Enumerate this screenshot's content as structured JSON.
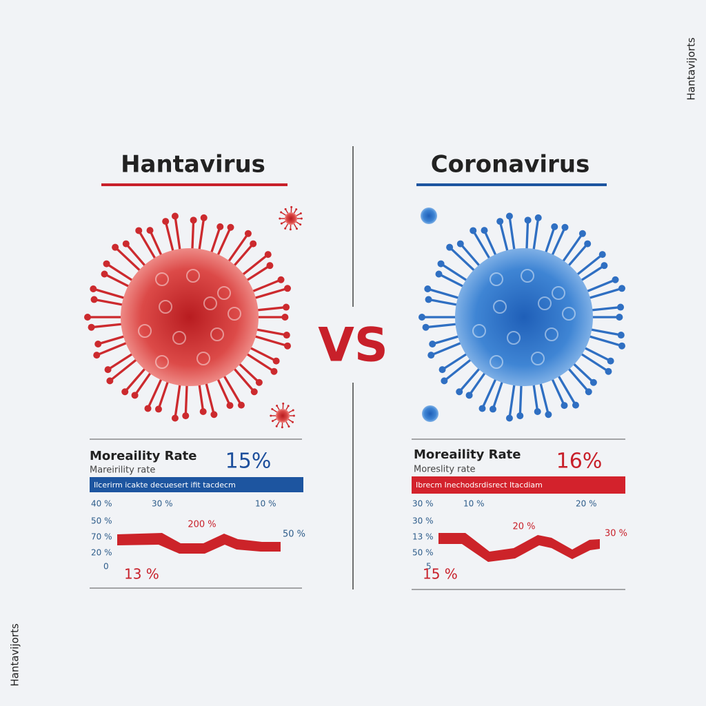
{
  "side_label_top": "Hantavijorts",
  "side_label_bottom": "Hantavijorts",
  "vs": "VS",
  "panels": [
    {
      "title": "Hantavirus",
      "stat_label": "Moreaility Rate",
      "stat_value": "15%",
      "sub_label": "Mareirility rate",
      "bar_text": "Ilcerirm icakte decuesert ifit tacdecm",
      "row_labels": [
        "40 %",
        "30 %",
        "10 %"
      ],
      "column_labels": [
        "50 %",
        "70 %",
        "20 %",
        "0"
      ],
      "line_labels": [
        "200 %",
        "50 %",
        "13 %"
      ]
    },
    {
      "title": "Coronavirus",
      "stat_label": "Moreaility Rate",
      "stat_value": "16%",
      "sub_label": "Moreslity rate",
      "bar_text": "Ibrecm Inechodsrdisrect Itacdiam",
      "row_labels": [
        "30 %",
        "10 %",
        "20 %"
      ],
      "column_labels": [
        "30 %",
        "13 %",
        "50 %",
        "5"
      ],
      "line_labels": [
        "20 %",
        "30 %",
        "15 %"
      ]
    }
  ]
}
